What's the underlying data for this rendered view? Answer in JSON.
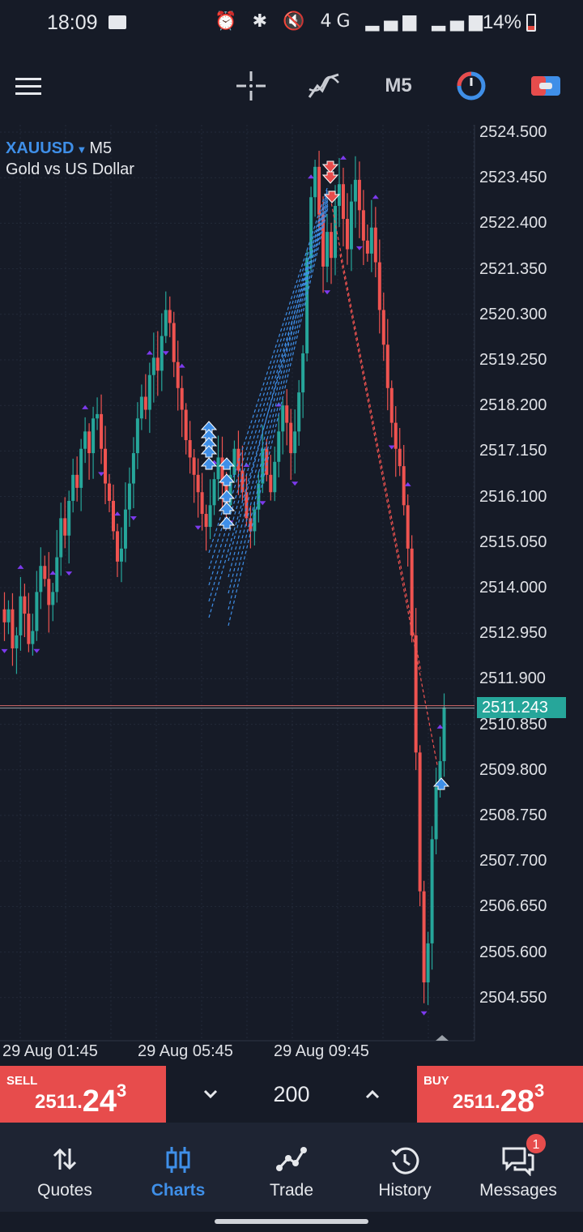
{
  "status": {
    "time": "18:09",
    "battery": "14%",
    "icons": "⏰ ✱ 🔇 4G ▂▄▆ ▂▄▆"
  },
  "toolbar": {
    "timeframe": "M5"
  },
  "chart": {
    "symbol": "XAUUSD",
    "symbol_timeframe": "M5",
    "description": "Gold vs US Dollar",
    "current_price": "2511.243",
    "colors": {
      "bull": "#26a69a",
      "bear": "#ef5350",
      "trade_line": "#3f8fe8",
      "fractal": "#7c3aed"
    }
  },
  "chart_data": {
    "type": "candlestick",
    "y_ticks": [
      "2524.500",
      "2523.450",
      "2522.400",
      "2521.350",
      "2520.300",
      "2519.250",
      "2518.200",
      "2517.150",
      "2516.100",
      "2515.050",
      "2514.000",
      "2512.950",
      "2511.900",
      "2510.850",
      "2509.800",
      "2508.750",
      "2507.700",
      "2506.650",
      "2505.600",
      "2504.550"
    ],
    "x_ticks": [
      "29 Aug 01:45",
      "29 Aug 05:45",
      "29 Aug 09:45"
    ],
    "ylim": [
      2503.6,
      2524.7
    ],
    "current_price": 2511.243,
    "close_series": [
      2513.2,
      2513.5,
      2512.6,
      2512.9,
      2513.8,
      2513.4,
      2512.7,
      2513.0,
      2513.9,
      2514.5,
      2514.2,
      2513.6,
      2513.9,
      2514.7,
      2515.6,
      2515.2,
      2516.0,
      2516.6,
      2516.3,
      2517.2,
      2517.6,
      2517.1,
      2517.9,
      2518.0,
      2517.2,
      2516.4,
      2516.0,
      2515.3,
      2514.6,
      2514.9,
      2515.8,
      2516.4,
      2517.1,
      2517.9,
      2518.4,
      2518.1,
      2518.9,
      2519.3,
      2519.0,
      2519.8,
      2520.4,
      2520.1,
      2519.2,
      2518.6,
      2518.1,
      2517.4,
      2517.0,
      2516.6,
      2516.2,
      2515.7,
      2515.4,
      2515.9,
      2516.5,
      2517.0,
      2516.4,
      2515.9,
      2516.6,
      2517.2,
      2516.7,
      2516.2,
      2515.6,
      2515.3,
      2515.8,
      2516.4,
      2517.2,
      2516.6,
      2516.2,
      2516.9,
      2517.6,
      2518.2,
      2517.8,
      2517.1,
      2517.6,
      2518.5,
      2519.4,
      2521.6,
      2523.0,
      2523.7,
      2522.6,
      2521.4,
      2522.2,
      2521.6,
      2522.8,
      2523.3,
      2522.5,
      2521.8,
      2522.9,
      2523.4,
      2522.7,
      2522.0,
      2521.7,
      2522.3,
      2521.5,
      2520.4,
      2519.6,
      2518.6,
      2517.8,
      2517.2,
      2516.8,
      2515.9,
      2514.9,
      2512.9,
      2510.2,
      2507.0,
      2504.9,
      2505.8,
      2508.2,
      2509.4,
      2510.0,
      2511.24
    ]
  },
  "trade": {
    "sell_label": "SELL",
    "sell_prefix": "2511.",
    "sell_big": "24",
    "sell_sup": "3",
    "buy_label": "BUY",
    "buy_prefix": "2511.",
    "buy_big": "28",
    "buy_sup": "3",
    "lot": "200"
  },
  "nav": {
    "quotes": "Quotes",
    "charts": "Charts",
    "trade": "Trade",
    "history": "History",
    "messages": "Messages",
    "messages_badge": "1"
  }
}
